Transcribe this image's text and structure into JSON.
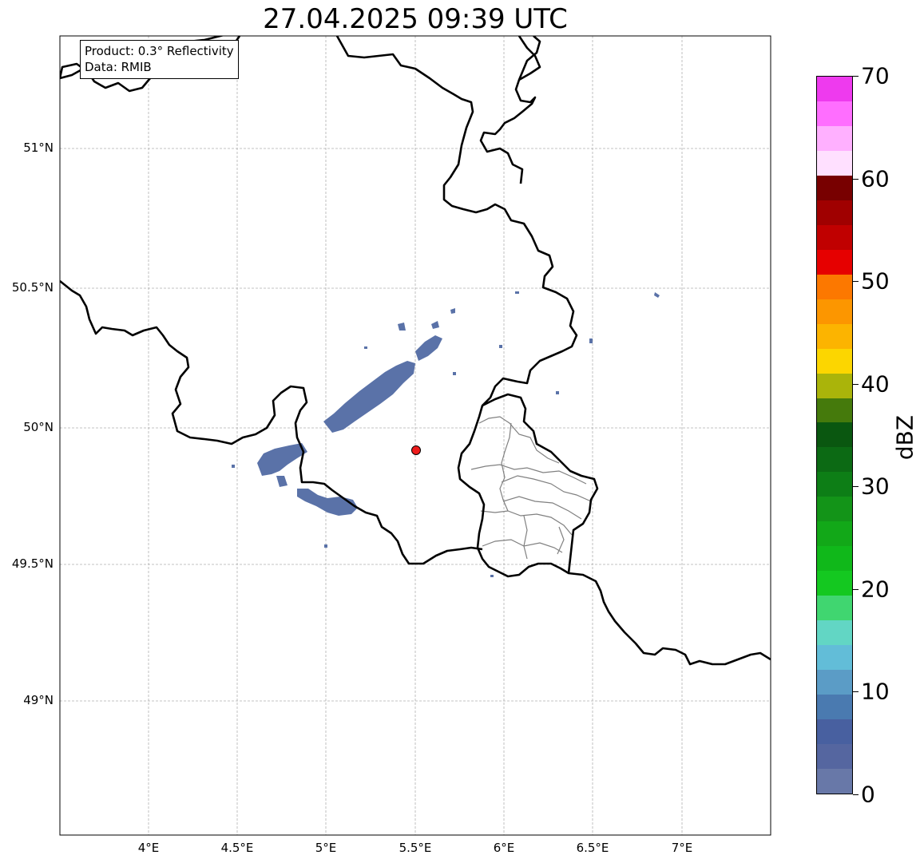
{
  "title": "27.04.2025 09:39 UTC",
  "info": {
    "product": "Product: 0.3° Reflectivity",
    "data": "Data: RMIB"
  },
  "axes": {
    "lat_labels": [
      "51°N",
      "50.5°N",
      "50°N",
      "49.5°N",
      "49°N"
    ],
    "lon_labels": [
      "4°E",
      "4.5°E",
      "5°E",
      "5.5°E",
      "6°E",
      "6.5°E",
      "7°E"
    ]
  },
  "colorbar": {
    "unit": "dBZ",
    "tick_labels": [
      "0",
      "10",
      "20",
      "30",
      "40",
      "50",
      "60",
      "70"
    ],
    "colors": [
      "#6878a8",
      "#5566a0",
      "#4860a0",
      "#4a7ab0",
      "#5b9cc6",
      "#62bdd8",
      "#62d6c4",
      "#40d670",
      "#14c820",
      "#10b81a",
      "#12a818",
      "#139418",
      "#0d7e16",
      "#0c6a14",
      "#0a5710",
      "#457a0c",
      "#aab40a",
      "#fcd600",
      "#fcb400",
      "#fc9600",
      "#fc7800",
      "#e60000",
      "#c00000",
      "#a00000",
      "#780000",
      "#ffe0ff",
      "#ffb0ff",
      "#ff6eff",
      "#ee3aee"
    ]
  },
  "colors": {
    "echo": "#5a72a8",
    "border": "#000000",
    "admin_border": "#808080",
    "radar_site": "#ee1c1c",
    "grid": "#b0b0b0"
  },
  "map_features": {
    "radar_site_icon": "red-circle-marker"
  }
}
